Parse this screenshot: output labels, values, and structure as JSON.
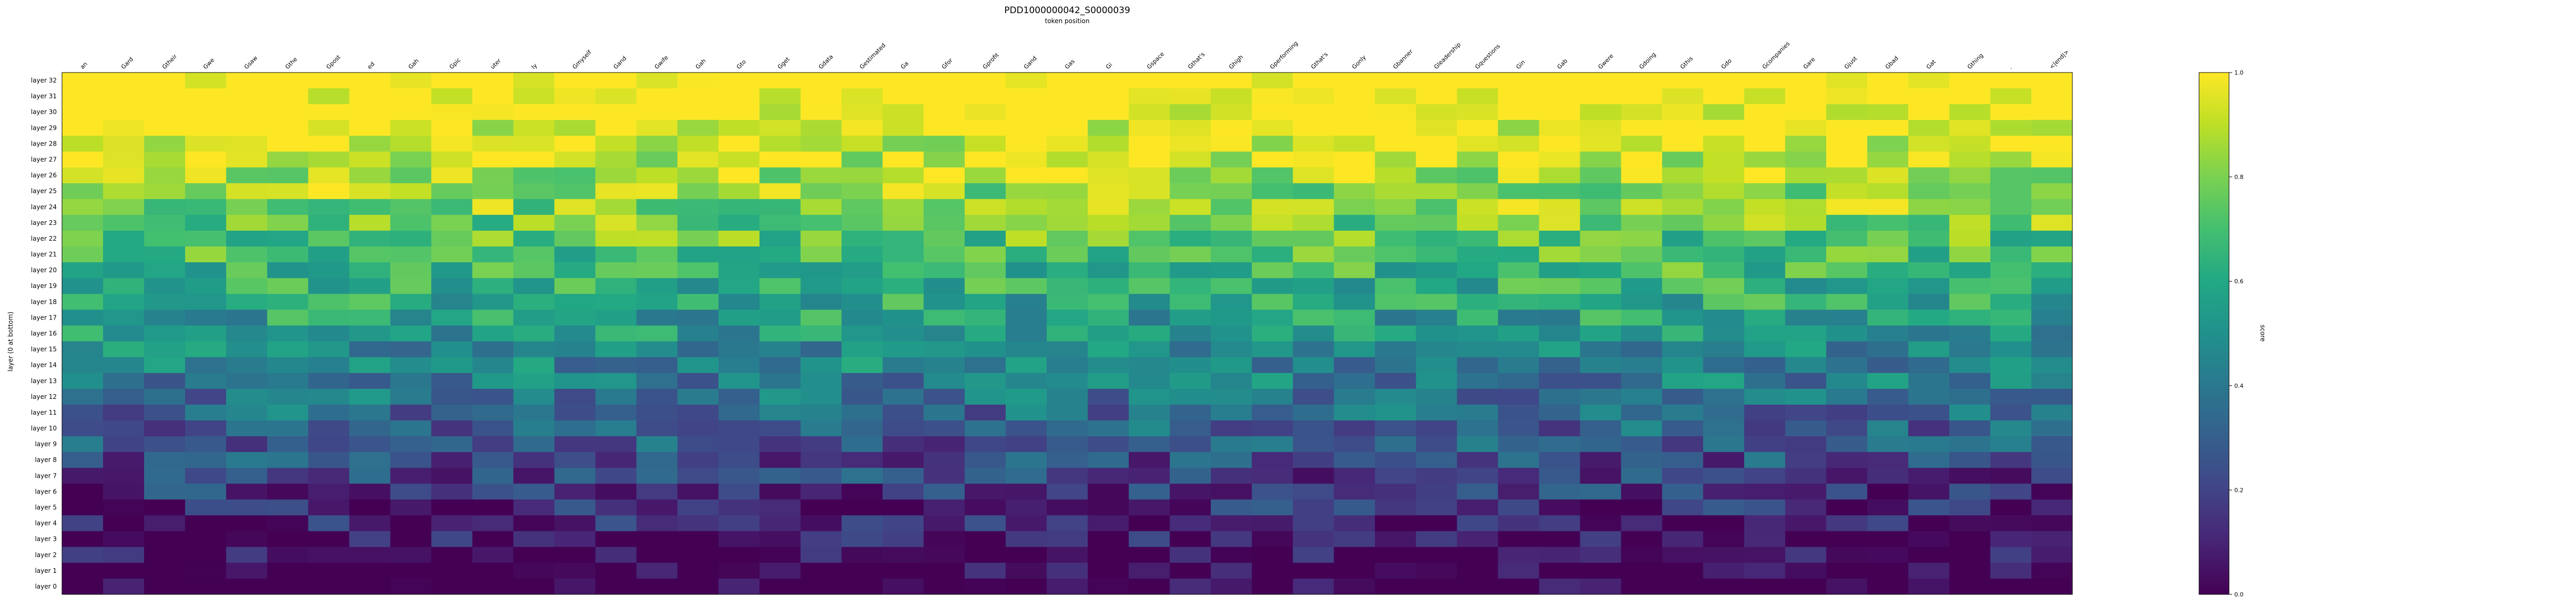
{
  "chart_data": {
    "type": "heatmap",
    "title": "PDD1000000042_S0000039",
    "xlabel": "token position",
    "ylabel": "layer (0 at bottom)",
    "colorbar_label": "score",
    "colorbar_ticks": [
      "0.0",
      "0.2",
      "0.4",
      "0.6",
      "0.8",
      "1.0"
    ],
    "color_range": [
      0,
      1
    ],
    "colormap": "viridis",
    "x_tokens": [
      "an",
      "Gard",
      "Gtheir",
      "Gwe",
      "Gsaw",
      "Gthe",
      "Gpost",
      "ed",
      "Gah",
      "Gpic",
      "uter",
      "ly",
      "Gmyself",
      "Gand",
      "Gwife",
      "Gah",
      "Gto",
      "Gget",
      "Gdata",
      "Gestimated",
      "Ga",
      "Gfor",
      "Gprofit",
      "Gand",
      "Gas",
      "Gi",
      "Gspace",
      "Gthat's",
      "Ghigh",
      "Gperforming",
      "Gthat's",
      "Gonly",
      "Gbanner",
      "Gleadership",
      "Gquestions",
      "Gin",
      "Gab",
      "Gwere",
      "Gdoing",
      "Gthis",
      "Gdo",
      "Gcompanies",
      "Gare",
      "Gjust",
      "Gbad",
      "Gat",
      "Gthing",
      ".",
      "<|end|>"
    ],
    "y_labels": [
      "layer 32",
      "layer 31",
      "layer 30",
      "layer 29",
      "layer 28",
      "layer 27",
      "layer 26",
      "layer 25",
      "layer 24",
      "layer 23",
      "layer 22",
      "layer 21",
      "layer 20",
      "layer 19",
      "layer 18",
      "layer 17",
      "layer 16",
      "layer 15",
      "layer 14",
      "layer 13",
      "layer 12",
      "layer 11",
      "layer 10",
      "layer 9",
      "layer 8",
      "layer 7",
      "layer 6",
      "layer 5",
      "layer 4",
      "layer 3",
      "layer 2",
      "layer 1",
      "layer 0"
    ],
    "values_note": "",
    "cells": []
  }
}
